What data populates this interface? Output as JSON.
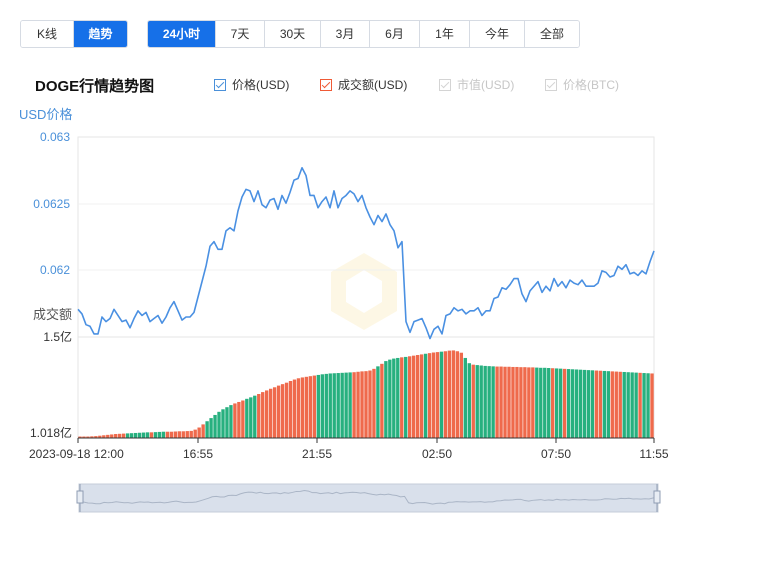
{
  "type_buttons": [
    {
      "label": "K线",
      "active": false
    },
    {
      "label": "趋势",
      "active": true
    }
  ],
  "range_buttons": [
    {
      "label": "24小时",
      "active": true
    },
    {
      "label": "7天",
      "active": false
    },
    {
      "label": "30天",
      "active": false
    },
    {
      "label": "3月",
      "active": false
    },
    {
      "label": "6月",
      "active": false
    },
    {
      "label": "1年",
      "active": false
    },
    {
      "label": "今年",
      "active": false
    },
    {
      "label": "全部",
      "active": false
    }
  ],
  "legend": [
    {
      "label": "价格(USD)",
      "checked": true,
      "color": "#4a90d9"
    },
    {
      "label": "成交额(USD)",
      "checked": true,
      "color": "#ef5a36"
    },
    {
      "label": "市值(USD)",
      "checked": false,
      "color": "#c8c8c8"
    },
    {
      "label": "价格(BTC)",
      "checked": false,
      "color": "#c8c8c8"
    }
  ],
  "colors": {
    "price_line": "#4a90e2",
    "volume_up": "#ef6a4c",
    "volume_down": "#27b07f",
    "axis_text": "#4a90d9"
  },
  "chart_data": {
    "type": "line",
    "title": "DOGE行情趋势图",
    "price_axis": {
      "label": "USD价格",
      "ticks": [
        "0.063",
        "0.0625",
        "0.062"
      ],
      "ylim": [
        0.0617,
        0.063
      ]
    },
    "volume_axis": {
      "label": "成交额",
      "ticks": [
        "1.5亿",
        "1.018亿"
      ],
      "ylim": [
        1.018,
        1.5
      ],
      "unit": "亿"
    },
    "x_ticks": [
      "2023-09-18 12:00",
      "16:55",
      "21:55",
      "02:50",
      "07:50",
      "11:55"
    ],
    "price_series": {
      "name": "价格(USD)",
      "values": [
        0.06188,
        0.06185,
        0.06178,
        0.06177,
        0.06172,
        0.06172,
        0.06183,
        0.0618,
        0.06182,
        0.06188,
        0.06184,
        0.0618,
        0.06181,
        0.06176,
        0.06182,
        0.06187,
        0.06184,
        0.06186,
        0.0618,
        0.06182,
        0.06184,
        0.06179,
        0.06183,
        0.06189,
        0.06193,
        0.06187,
        0.06181,
        0.06183,
        0.06183,
        0.06186,
        0.06196,
        0.06206,
        0.06216,
        0.06229,
        0.06232,
        0.06227,
        0.06227,
        0.06239,
        0.06241,
        0.06239,
        0.06252,
        0.06261,
        0.06266,
        0.06265,
        0.06258,
        0.06265,
        0.06256,
        0.06254,
        0.06259,
        0.0626,
        0.06253,
        0.06262,
        0.06257,
        0.06264,
        0.06272,
        0.06273,
        0.0628,
        0.06275,
        0.06262,
        0.06262,
        0.06254,
        0.06258,
        0.06261,
        0.06254,
        0.06265,
        0.06254,
        0.0626,
        0.06262,
        0.06265,
        0.06263,
        0.06258,
        0.06262,
        0.06254,
        0.06248,
        0.06243,
        0.06249,
        0.06245,
        0.0625,
        0.06243,
        0.06239,
        0.06228,
        0.06232,
        0.0618,
        0.06173,
        0.0618,
        0.06181,
        0.06182,
        0.06176,
        0.06169,
        0.06175,
        0.06177,
        0.06172,
        0.06184,
        0.06185,
        0.06189,
        0.06187,
        0.06188,
        0.06185,
        0.06187,
        0.06187,
        0.06189,
        0.06184,
        0.06187,
        0.06187,
        0.06195,
        0.06196,
        0.06202,
        0.06201,
        0.06204,
        0.06208,
        0.06208,
        0.06198,
        0.06193,
        0.062,
        0.06203,
        0.06206,
        0.06199,
        0.06203,
        0.062,
        0.06208,
        0.06203,
        0.06206,
        0.06202,
        0.06207,
        0.06205,
        0.06204,
        0.06207,
        0.06203,
        0.06203,
        0.06203,
        0.06205,
        0.06213,
        0.06212,
        0.06209,
        0.0621,
        0.06216,
        0.06214,
        0.06217,
        0.06211,
        0.06212,
        0.0621,
        0.06213,
        0.06211,
        0.06219,
        0.06226
      ]
    },
    "volume_series": {
      "name": "成交额(USD)",
      "values": [
        1.025,
        1.025,
        1.025,
        1.026,
        1.027,
        1.029,
        1.031,
        1.033,
        1.035,
        1.037,
        1.038,
        1.039,
        1.04,
        1.041,
        1.042,
        1.043,
        1.044,
        1.045,
        1.045,
        1.046,
        1.047,
        1.048,
        1.048,
        1.048,
        1.049,
        1.05,
        1.05,
        1.051,
        1.052,
        1.058,
        1.068,
        1.083,
        1.098,
        1.113,
        1.128,
        1.143,
        1.155,
        1.165,
        1.175,
        1.183,
        1.19,
        1.197,
        1.205,
        1.212,
        1.22,
        1.228,
        1.237,
        1.245,
        1.253,
        1.26,
        1.268,
        1.275,
        1.282,
        1.29,
        1.297,
        1.303,
        1.307,
        1.31,
        1.313,
        1.316,
        1.319,
        1.322,
        1.324,
        1.326,
        1.327,
        1.328,
        1.329,
        1.33,
        1.331,
        1.332,
        1.334,
        1.336,
        1.337,
        1.34,
        1.348,
        1.36,
        1.372,
        1.385,
        1.392,
        1.397,
        1.4,
        1.403,
        1.405,
        1.408,
        1.411,
        1.414,
        1.417,
        1.42,
        1.423,
        1.426,
        1.428,
        1.43,
        1.432,
        1.435,
        1.436,
        1.432,
        1.425,
        1.4,
        1.375,
        1.368,
        1.366,
        1.364,
        1.362,
        1.361,
        1.36,
        1.359,
        1.359,
        1.358,
        1.358,
        1.357,
        1.357,
        1.356,
        1.356,
        1.355,
        1.355,
        1.354,
        1.353,
        1.353,
        1.352,
        1.351,
        1.35,
        1.349,
        1.348,
        1.347,
        1.346,
        1.345,
        1.344,
        1.343,
        1.342,
        1.341,
        1.34,
        1.339,
        1.338,
        1.337,
        1.336,
        1.335,
        1.334,
        1.333,
        1.332,
        1.331,
        1.33,
        1.329,
        1.328,
        1.327,
        1.326
      ],
      "direction": "0000000000001111110111000000000011111110001110000000000000001111111110000001011110100001000100000110111110000000000111101101111111001100011110110"
    }
  }
}
